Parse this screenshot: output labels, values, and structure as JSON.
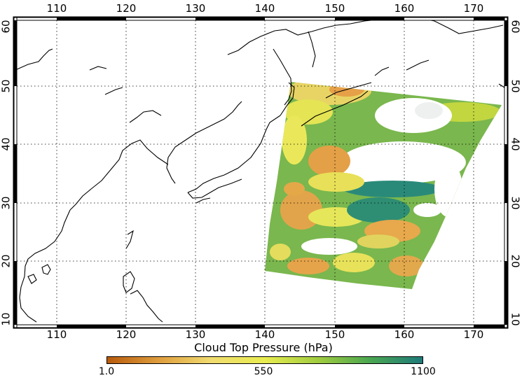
{
  "map": {
    "lon_ticks": [
      110,
      120,
      130,
      140,
      150,
      160,
      170
    ],
    "lat_ticks": [
      10,
      20,
      30,
      40,
      50,
      60
    ],
    "lon_range": [
      104,
      174
    ],
    "lat_range": [
      9,
      61
    ],
    "gridlines": "dotted",
    "top_lon_labels": [
      "110",
      "120",
      "130",
      "140",
      "150",
      "160",
      "170"
    ],
    "bottom_lon_labels": [
      "110",
      "120",
      "130",
      "140",
      "150",
      "160",
      "170"
    ],
    "left_lat_labels": [
      "10",
      "20",
      "30",
      "40",
      "50",
      "60"
    ],
    "right_lat_labels": [
      "10",
      "20",
      "30",
      "40",
      "50",
      "60"
    ]
  },
  "colorbar": {
    "title": "Cloud Top Pressure (hPa)",
    "min_label": "1.0",
    "mid_label": "550",
    "max_label": "1100",
    "colors": [
      "#b85a0c",
      "#e0a040",
      "#f0dc70",
      "#e8ec50",
      "#a0cc40",
      "#4ca850",
      "#1e7a7a"
    ]
  }
}
